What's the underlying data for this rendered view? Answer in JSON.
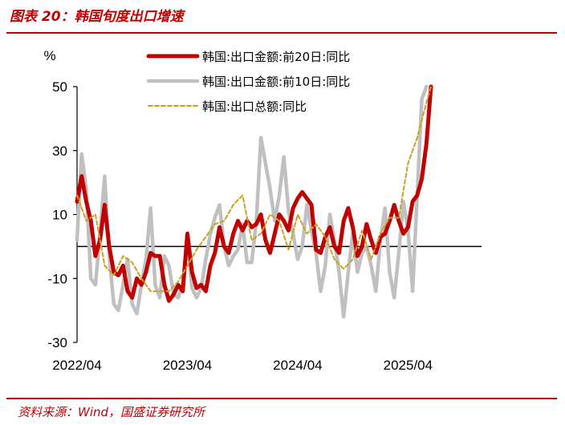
{
  "header": {
    "title": "图表 20：韩国旬度出口增速"
  },
  "footer": {
    "source": "资料来源：Wind，国盛证券研究所"
  },
  "colors": {
    "accent": "#c00000",
    "series_20d": "#c00000",
    "series_10d": "#c0c0c0",
    "series_total": "#c9a227"
  },
  "chart_data": {
    "type": "line",
    "title": "图表 20：韩国旬度出口增速",
    "ylabel": "%",
    "xlabel": "",
    "ylim": [
      -30,
      50
    ],
    "yticks": [
      50,
      30,
      10,
      -10,
      -30
    ],
    "xlim": [
      0,
      44
    ],
    "xticks": [
      {
        "label": "2022/04",
        "x": 0
      },
      {
        "label": "2023/04",
        "x": 12
      },
      {
        "label": "2024/04",
        "x": 24
      },
      {
        "label": "2025/04",
        "x": 36
      }
    ],
    "legend_position": "top",
    "series": [
      {
        "name": "韩国:出口金额:前20日:同比",
        "style": "solid-thick",
        "points": [
          [
            0,
            14
          ],
          [
            0.5,
            22
          ],
          [
            1,
            14
          ],
          [
            1.5,
            8
          ],
          [
            2,
            -3
          ],
          [
            2.5,
            2
          ],
          [
            3,
            13
          ],
          [
            3.5,
            0
          ],
          [
            4,
            -8
          ],
          [
            4.5,
            -9
          ],
          [
            5,
            -6
          ],
          [
            5.5,
            -14
          ],
          [
            6,
            -16
          ],
          [
            6.5,
            -10
          ],
          [
            7,
            -12
          ],
          [
            7.5,
            -8
          ],
          [
            8,
            -2
          ],
          [
            8.5,
            -3
          ],
          [
            9,
            -3
          ],
          [
            9.5,
            -12
          ],
          [
            10,
            -17
          ],
          [
            10.5,
            -15
          ],
          [
            11,
            -12
          ],
          [
            11.5,
            -14
          ],
          [
            12,
            4
          ],
          [
            12.5,
            -8
          ],
          [
            13,
            -13
          ],
          [
            13.5,
            -12
          ],
          [
            14,
            -14
          ],
          [
            14.5,
            -6
          ],
          [
            15,
            -2
          ],
          [
            15.5,
            6
          ],
          [
            16,
            0
          ],
          [
            16.5,
            -2
          ],
          [
            17,
            4
          ],
          [
            17.5,
            8
          ],
          [
            18,
            5
          ],
          [
            18.5,
            8
          ],
          [
            19,
            6
          ],
          [
            19.5,
            7
          ],
          [
            20,
            10
          ],
          [
            20.5,
            2
          ],
          [
            21,
            -2
          ],
          [
            21.5,
            4
          ],
          [
            22,
            10
          ],
          [
            22.5,
            8
          ],
          [
            23,
            5
          ],
          [
            23.5,
            12
          ],
          [
            24,
            15
          ],
          [
            24.5,
            17
          ],
          [
            25,
            15
          ],
          [
            25.5,
            13
          ],
          [
            26,
            -1
          ],
          [
            26.5,
            -2
          ],
          [
            27,
            3
          ],
          [
            27.5,
            6
          ],
          [
            28,
            0
          ],
          [
            28.5,
            -2
          ],
          [
            29,
            8
          ],
          [
            29.5,
            12
          ],
          [
            30,
            6
          ],
          [
            30.5,
            -3
          ],
          [
            31,
            0
          ],
          [
            31.5,
            7
          ],
          [
            32,
            2
          ],
          [
            32.5,
            -2
          ],
          [
            33,
            3
          ],
          [
            33.5,
            4
          ],
          [
            34,
            8
          ],
          [
            34.5,
            13
          ],
          [
            35,
            8
          ],
          [
            35.5,
            4
          ],
          [
            36,
            6
          ],
          [
            36.5,
            14
          ],
          [
            37,
            16
          ],
          [
            37.5,
            21
          ],
          [
            38,
            32
          ],
          [
            38.5,
            50
          ]
        ]
      },
      {
        "name": "韩国:出口金额:前10日:同比",
        "style": "solid-gray",
        "points": [
          [
            0,
            2
          ],
          [
            0.5,
            29
          ],
          [
            1,
            18
          ],
          [
            1.5,
            -10
          ],
          [
            2,
            -12
          ],
          [
            2.5,
            4
          ],
          [
            3,
            22
          ],
          [
            3.5,
            -3
          ],
          [
            4,
            -18
          ],
          [
            4.5,
            -20
          ],
          [
            5,
            -12
          ],
          [
            5.5,
            -4
          ],
          [
            6,
            -18
          ],
          [
            6.5,
            -21
          ],
          [
            7,
            -12
          ],
          [
            7.5,
            -4
          ],
          [
            8,
            12
          ],
          [
            8.5,
            -12
          ],
          [
            9,
            -16
          ],
          [
            9.5,
            -3
          ],
          [
            10,
            -6
          ],
          [
            10.5,
            -15
          ],
          [
            11,
            -16
          ],
          [
            11.5,
            -12
          ],
          [
            12,
            2
          ],
          [
            12.5,
            -13
          ],
          [
            13,
            -16
          ],
          [
            13.5,
            -13
          ],
          [
            14,
            -4
          ],
          [
            14.5,
            4
          ],
          [
            15,
            9
          ],
          [
            15.5,
            13
          ],
          [
            16,
            0
          ],
          [
            16.5,
            -6
          ],
          [
            17,
            -3
          ],
          [
            17.5,
            -1
          ],
          [
            18,
            7
          ],
          [
            18.5,
            -5
          ],
          [
            19,
            -5
          ],
          [
            19.5,
            8
          ],
          [
            20,
            34
          ],
          [
            20.5,
            26
          ],
          [
            21,
            18
          ],
          [
            21.5,
            8
          ],
          [
            22,
            16
          ],
          [
            22.5,
            28
          ],
          [
            23,
            11
          ],
          [
            23.5,
            4
          ],
          [
            24,
            -4
          ],
          [
            24.5,
            0
          ],
          [
            25,
            13
          ],
          [
            25.5,
            5
          ],
          [
            26,
            -2
          ],
          [
            26.5,
            -14
          ],
          [
            27,
            -6
          ],
          [
            27.5,
            10
          ],
          [
            28,
            2
          ],
          [
            28.5,
            -8
          ],
          [
            29,
            -22
          ],
          [
            29.5,
            -8
          ],
          [
            30,
            4
          ],
          [
            30.5,
            -8
          ],
          [
            31,
            -2
          ],
          [
            31.5,
            0
          ],
          [
            32,
            -6
          ],
          [
            32.5,
            -14
          ],
          [
            33,
            2
          ],
          [
            33.5,
            12
          ],
          [
            34,
            -8
          ],
          [
            34.5,
            -16
          ],
          [
            35,
            -2
          ],
          [
            35.5,
            14
          ],
          [
            36,
            5
          ],
          [
            36.5,
            -14
          ],
          [
            37,
            16
          ],
          [
            37.5,
            46
          ],
          [
            38,
            50
          ]
        ]
      },
      {
        "name": "韩国:出口总额:同比",
        "style": "dashed-gold",
        "points": [
          [
            0,
            16
          ],
          [
            1,
            8
          ],
          [
            2,
            10
          ],
          [
            3,
            -6
          ],
          [
            4,
            -9
          ],
          [
            5,
            -3
          ],
          [
            6,
            -5
          ],
          [
            7,
            -10
          ],
          [
            8,
            -14
          ],
          [
            9,
            -14
          ],
          [
            10,
            -14
          ],
          [
            11,
            -11
          ],
          [
            12,
            -6
          ],
          [
            13,
            -1
          ],
          [
            14,
            3
          ],
          [
            15,
            7
          ],
          [
            16,
            8
          ],
          [
            17,
            13
          ],
          [
            18,
            16
          ],
          [
            19,
            2
          ],
          [
            20,
            4
          ],
          [
            21,
            10
          ],
          [
            22,
            8
          ],
          [
            23,
            -1
          ],
          [
            24,
            10
          ],
          [
            25,
            4
          ],
          [
            26,
            7
          ],
          [
            27,
            3
          ],
          [
            28,
            -4
          ],
          [
            29,
            -7
          ],
          [
            30,
            -4
          ],
          [
            31,
            5
          ],
          [
            32,
            -4
          ],
          [
            33,
            4
          ],
          [
            34,
            9
          ],
          [
            35,
            9
          ],
          [
            36,
            26
          ],
          [
            37,
            34
          ],
          [
            38,
            45
          ],
          [
            38.5,
            50
          ]
        ]
      }
    ]
  }
}
